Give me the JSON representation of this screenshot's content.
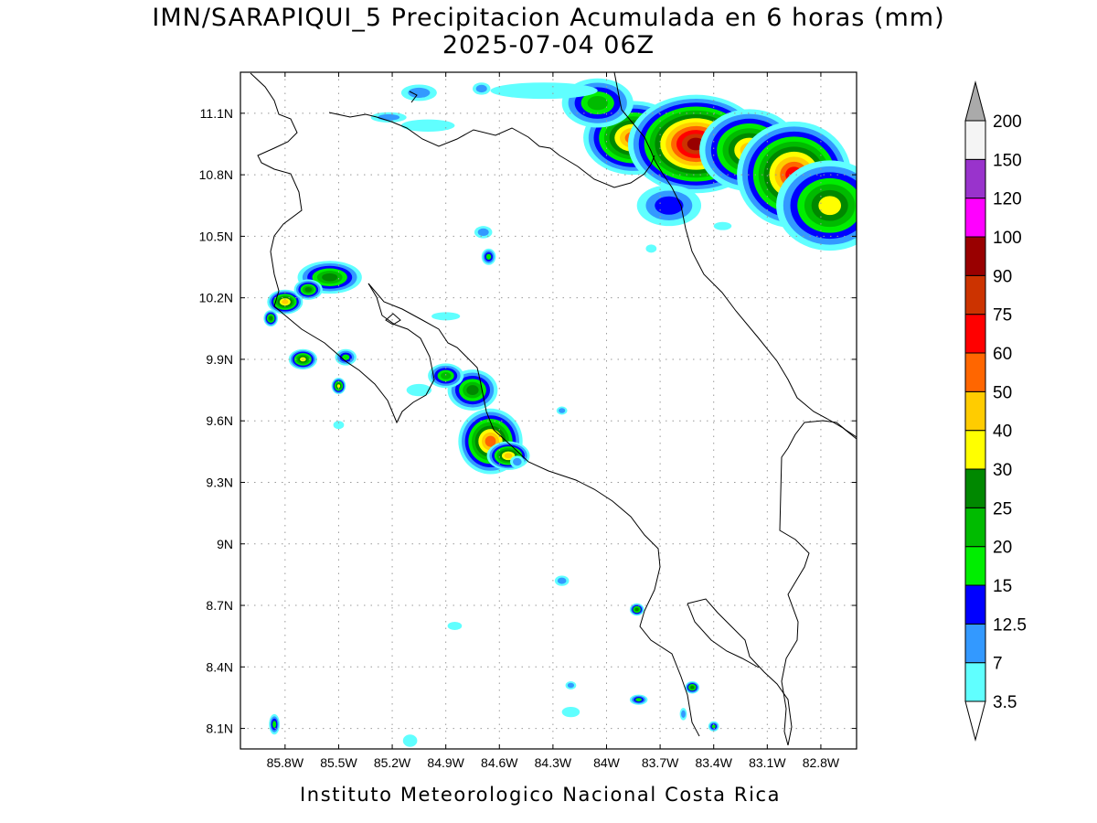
{
  "title_line1": "IMN/SARAPIQUI_5 Precipitacion Acumulada en 6 horas (mm)",
  "title_line2": "2025-07-04 06Z",
  "footer": "Instituto Meteorologico Nacional Costa Rica",
  "map": {
    "lon_range": [
      -86.05,
      -82.6
    ],
    "lat_range": [
      8.0,
      11.3
    ],
    "lat_ticks": [
      {
        "value": 11.1,
        "label": "11.1N"
      },
      {
        "value": 10.8,
        "label": "10.8N"
      },
      {
        "value": 10.5,
        "label": "10.5N"
      },
      {
        "value": 10.2,
        "label": "10.2N"
      },
      {
        "value": 9.9,
        "label": "9.9N"
      },
      {
        "value": 9.6,
        "label": "9.6N"
      },
      {
        "value": 9.3,
        "label": "9.3N"
      },
      {
        "value": 9.0,
        "label": "9N"
      },
      {
        "value": 8.7,
        "label": "8.7N"
      },
      {
        "value": 8.4,
        "label": "8.4N"
      },
      {
        "value": 8.1,
        "label": "8.1N"
      }
    ],
    "lon_ticks": [
      {
        "value": -85.8,
        "label": "85.8W"
      },
      {
        "value": -85.5,
        "label": "85.5W"
      },
      {
        "value": -85.2,
        "label": "85.2W"
      },
      {
        "value": -84.9,
        "label": "84.9W"
      },
      {
        "value": -84.6,
        "label": "84.6W"
      },
      {
        "value": -84.3,
        "label": "84.3W"
      },
      {
        "value": -84.0,
        "label": "84W"
      },
      {
        "value": -83.7,
        "label": "83.7W"
      },
      {
        "value": -83.4,
        "label": "83.4W"
      },
      {
        "value": -83.1,
        "label": "83.1W"
      },
      {
        "value": -82.8,
        "label": "82.8W"
      }
    ],
    "grid": true
  },
  "colorbar": {
    "levels": [
      "3.5",
      "7",
      "12.5",
      "15",
      "20",
      "25",
      "30",
      "40",
      "50",
      "60",
      "75",
      "90",
      "100",
      "120",
      "150",
      "200"
    ],
    "colors": [
      "#60ffff",
      "#3399ff",
      "#0000ff",
      "#00ee00",
      "#00bb00",
      "#008800",
      "#ffff00",
      "#ffcc00",
      "#ff6600",
      "#ff0000",
      "#cc3300",
      "#990000",
      "#ff00ff",
      "#9933cc",
      "#f4f4f4",
      "#aaaaaa"
    ]
  },
  "cells": [
    {
      "lon": -83.85,
      "lat": 10.98,
      "rx": 0.28,
      "ry": 0.18,
      "peak": 8
    },
    {
      "lon": -83.5,
      "lat": 10.95,
      "rx": 0.38,
      "ry": 0.24,
      "peak": 11
    },
    {
      "lon": -83.2,
      "lat": 10.92,
      "rx": 0.28,
      "ry": 0.2,
      "peak": 7
    },
    {
      "lon": -82.95,
      "lat": 10.8,
      "rx": 0.32,
      "ry": 0.26,
      "peak": 9
    },
    {
      "lon": -82.75,
      "lat": 10.65,
      "rx": 0.3,
      "ry": 0.22,
      "peak": 6
    },
    {
      "lon": -84.05,
      "lat": 11.15,
      "rx": 0.2,
      "ry": 0.12,
      "peak": 4
    },
    {
      "lon": -83.65,
      "lat": 10.65,
      "rx": 0.18,
      "ry": 0.1,
      "peak": 2
    },
    {
      "lon": -84.75,
      "lat": 9.75,
      "rx": 0.14,
      "ry": 0.1,
      "peak": 5
    },
    {
      "lon": -84.65,
      "lat": 9.5,
      "rx": 0.18,
      "ry": 0.16,
      "peak": 8
    },
    {
      "lon": -84.55,
      "lat": 9.43,
      "rx": 0.12,
      "ry": 0.07,
      "peak": 7
    },
    {
      "lon": -84.9,
      "lat": 9.82,
      "rx": 0.1,
      "ry": 0.06,
      "peak": 4
    },
    {
      "lon": -85.55,
      "lat": 10.3,
      "rx": 0.18,
      "ry": 0.08,
      "peak": 5
    },
    {
      "lon": -85.8,
      "lat": 10.18,
      "rx": 0.1,
      "ry": 0.06,
      "peak": 7
    },
    {
      "lon": -85.67,
      "lat": 10.24,
      "rx": 0.08,
      "ry": 0.05,
      "peak": 5
    },
    {
      "lon": -85.88,
      "lat": 10.1,
      "rx": 0.04,
      "ry": 0.04,
      "peak": 5
    },
    {
      "lon": -85.7,
      "lat": 9.9,
      "rx": 0.08,
      "ry": 0.05,
      "peak": 6
    },
    {
      "lon": -85.46,
      "lat": 9.91,
      "rx": 0.06,
      "ry": 0.04,
      "peak": 3
    },
    {
      "lon": -85.5,
      "lat": 9.77,
      "rx": 0.04,
      "ry": 0.04,
      "peak": 6
    },
    {
      "lon": -84.66,
      "lat": 10.4,
      "rx": 0.04,
      "ry": 0.04,
      "peak": 3
    },
    {
      "lon": -83.83,
      "lat": 8.68,
      "rx": 0.04,
      "ry": 0.03,
      "peak": 5
    },
    {
      "lon": -83.52,
      "lat": 8.3,
      "rx": 0.04,
      "ry": 0.03,
      "peak": 5
    },
    {
      "lon": -83.82,
      "lat": 8.24,
      "rx": 0.05,
      "ry": 0.025,
      "peak": 3
    },
    {
      "lon": -83.4,
      "lat": 8.11,
      "rx": 0.03,
      "ry": 0.025,
      "peak": 3
    },
    {
      "lon": -85.86,
      "lat": 8.12,
      "rx": 0.03,
      "ry": 0.05,
      "peak": 3
    },
    {
      "lon": -83.57,
      "lat": 8.17,
      "rx": 0.02,
      "ry": 0.03,
      "peak": 1
    },
    {
      "lon": -84.69,
      "lat": 10.52,
      "rx": 0.05,
      "ry": 0.03,
      "peak": 1
    },
    {
      "lon": -84.25,
      "lat": 8.82,
      "rx": 0.04,
      "ry": 0.025,
      "peak": 1
    },
    {
      "lon": -84.2,
      "lat": 8.18,
      "rx": 0.05,
      "ry": 0.025,
      "peak": 0
    },
    {
      "lon": -84.2,
      "lat": 8.31,
      "rx": 0.03,
      "ry": 0.02,
      "peak": 1
    },
    {
      "lon": -85.5,
      "lat": 9.58,
      "rx": 0.03,
      "ry": 0.02,
      "peak": 0
    },
    {
      "lon": -84.85,
      "lat": 8.6,
      "rx": 0.04,
      "ry": 0.02,
      "peak": 0
    },
    {
      "lon": -85.1,
      "lat": 8.04,
      "rx": 0.04,
      "ry": 0.03,
      "peak": 0
    },
    {
      "lon": -85.05,
      "lat": 11.2,
      "rx": 0.1,
      "ry": 0.04,
      "peak": 1
    },
    {
      "lon": -84.35,
      "lat": 11.21,
      "rx": 0.3,
      "ry": 0.04,
      "peak": 0
    },
    {
      "lon": -85.0,
      "lat": 11.04,
      "rx": 0.15,
      "ry": 0.03,
      "peak": 0
    },
    {
      "lon": -85.22,
      "lat": 11.08,
      "rx": 0.1,
      "ry": 0.025,
      "peak": 1
    },
    {
      "lon": -84.7,
      "lat": 11.22,
      "rx": 0.05,
      "ry": 0.03,
      "peak": 1
    },
    {
      "lon": -84.9,
      "lat": 10.11,
      "rx": 0.08,
      "ry": 0.02,
      "peak": 0
    },
    {
      "lon": -84.25,
      "lat": 9.65,
      "rx": 0.03,
      "ry": 0.02,
      "peak": 1
    },
    {
      "lon": -84.5,
      "lat": 9.4,
      "rx": 0.04,
      "ry": 0.03,
      "peak": 1
    },
    {
      "lon": -85.05,
      "lat": 9.75,
      "rx": 0.07,
      "ry": 0.03,
      "peak": 0
    },
    {
      "lon": -83.35,
      "lat": 10.55,
      "rx": 0.05,
      "ry": 0.02,
      "peak": 0
    },
    {
      "lon": -83.75,
      "lat": 10.44,
      "rx": 0.03,
      "ry": 0.02,
      "peak": 0
    }
  ]
}
